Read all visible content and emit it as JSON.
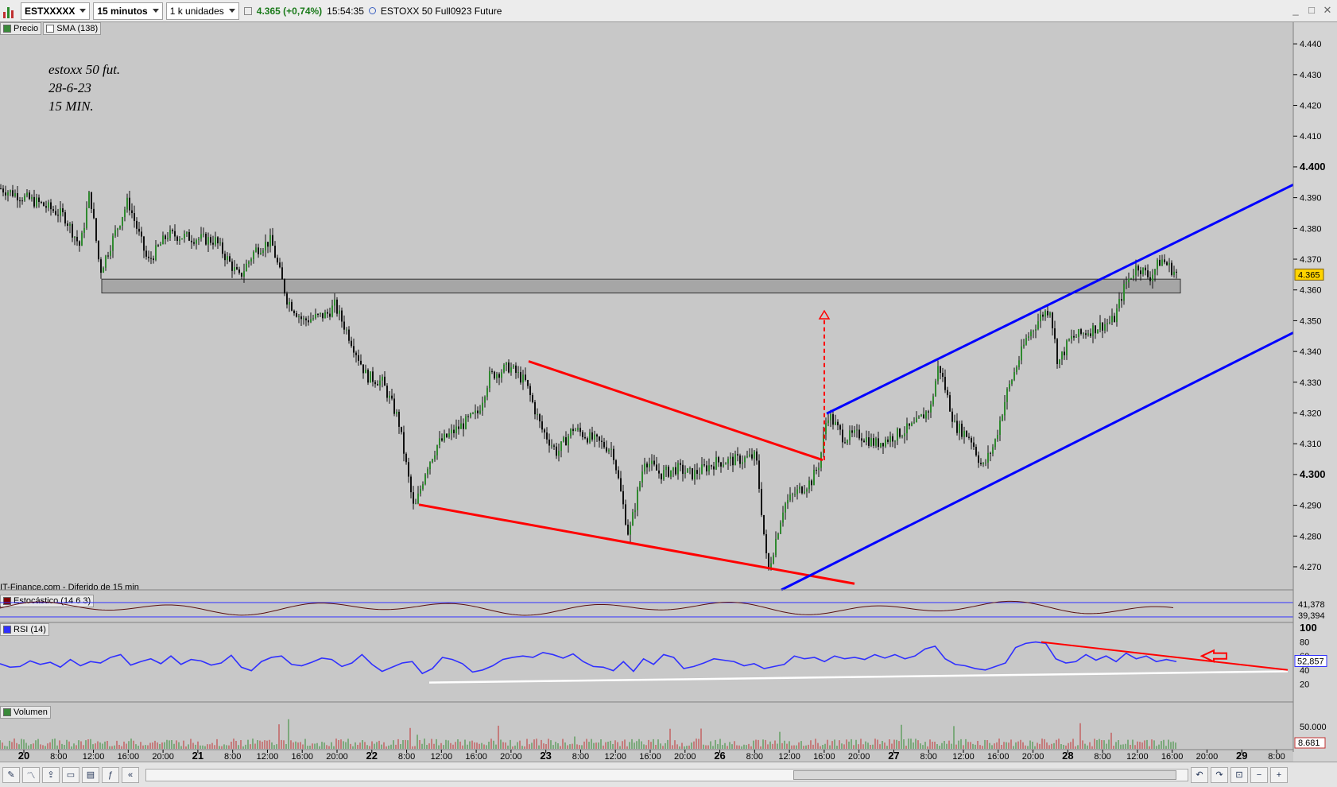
{
  "toolbar": {
    "symbol": "ESTXXXXX",
    "interval": "15 minutos",
    "units": "1 k unidades",
    "quote_price": "4.365 (+0,74%)",
    "quote_time": "15:54:35",
    "quote_name": "ESTOXX 50 Full0923 Future"
  },
  "legend": {
    "price_label": "Precio",
    "sma_label": "SMA (138)"
  },
  "annotation": {
    "line1": "estoxx 50 fut.",
    "line2": "28-6-23",
    "line3": "15 MIN."
  },
  "source_label": "IT-Finance.com - Diferido de 15 min",
  "colors": {
    "background": "#c8c8c8",
    "support": "#ff0000",
    "channel": "#0000ff",
    "rsi": "#3030ff",
    "candle": "#000000"
  },
  "chart_data": [
    {
      "type": "line",
      "title": "",
      "panel": "price",
      "x_ticks": [
        "20",
        "8:00",
        "12:00",
        "16:00",
        "20:00",
        "21",
        "8:00",
        "12:00",
        "16:00",
        "20:00",
        "22",
        "8:00",
        "12:00",
        "16:00",
        "20:00",
        "23",
        "8:00",
        "12:00",
        "16:00",
        "20:00",
        "26",
        "8:00",
        "12:00",
        "16:00",
        "20:00",
        "27",
        "8:00",
        "12:00",
        "16:00",
        "20:00",
        "28",
        "8:00",
        "12:00",
        "16:00",
        "20:00",
        "29",
        "8:00"
      ],
      "y_ticks": [
        "4.440",
        "4.430",
        "4.420",
        "4.410",
        "4.400",
        "4.390",
        "4.380",
        "4.370",
        "4.360",
        "4.350",
        "4.340",
        "4.330",
        "4.320",
        "4.310",
        "4.300",
        "4.290",
        "4.280",
        "4.270"
      ],
      "ylim": [
        4.2625,
        4.4465
      ],
      "last_price": "4.365",
      "path_points": [
        [
          0,
          4.393
        ],
        [
          50,
          4.388
        ],
        [
          80,
          4.384
        ],
        [
          100,
          4.374
        ],
        [
          112,
          4.392
        ],
        [
          125,
          4.366
        ],
        [
          140,
          4.376
        ],
        [
          160,
          4.389
        ],
        [
          185,
          4.369
        ],
        [
          210,
          4.378
        ],
        [
          240,
          4.377
        ],
        [
          270,
          4.376
        ],
        [
          300,
          4.364
        ],
        [
          320,
          4.373
        ],
        [
          340,
          4.376
        ],
        [
          360,
          4.357
        ],
        [
          380,
          4.35
        ],
        [
          410,
          4.352
        ],
        [
          420,
          4.355
        ],
        [
          440,
          4.344
        ],
        [
          460,
          4.332
        ],
        [
          480,
          4.33
        ],
        [
          500,
          4.318
        ],
        [
          520,
          4.288
        ],
        [
          535,
          4.302
        ],
        [
          550,
          4.31
        ],
        [
          575,
          4.315
        ],
        [
          600,
          4.32
        ],
        [
          615,
          4.332
        ],
        [
          640,
          4.335
        ],
        [
          660,
          4.33
        ],
        [
          680,
          4.315
        ],
        [
          700,
          4.307
        ],
        [
          720,
          4.315
        ],
        [
          740,
          4.312
        ],
        [
          770,
          4.308
        ],
        [
          790,
          4.28
        ],
        [
          810,
          4.305
        ],
        [
          830,
          4.3
        ],
        [
          850,
          4.302
        ],
        [
          870,
          4.3
        ],
        [
          900,
          4.304
        ],
        [
          935,
          4.305
        ],
        [
          950,
          4.306
        ],
        [
          965,
          4.268
        ],
        [
          985,
          4.29
        ],
        [
          1000,
          4.294
        ],
        [
          1020,
          4.298
        ],
        [
          1030,
          4.304
        ],
        [
          1040,
          4.32
        ],
        [
          1060,
          4.312
        ],
        [
          1080,
          4.313
        ],
        [
          1100,
          4.31
        ],
        [
          1120,
          4.312
        ],
        [
          1150,
          4.316
        ],
        [
          1170,
          4.322
        ],
        [
          1180,
          4.336
        ],
        [
          1200,
          4.316
        ],
        [
          1220,
          4.312
        ],
        [
          1235,
          4.302
        ],
        [
          1250,
          4.31
        ],
        [
          1265,
          4.326
        ],
        [
          1290,
          4.344
        ],
        [
          1310,
          4.352
        ],
        [
          1320,
          4.354
        ],
        [
          1330,
          4.336
        ],
        [
          1345,
          4.344
        ],
        [
          1380,
          4.348
        ],
        [
          1400,
          4.35
        ],
        [
          1415,
          4.362
        ],
        [
          1430,
          4.368
        ],
        [
          1445,
          4.364
        ],
        [
          1460,
          4.37
        ],
        [
          1480,
          4.365
        ]
      ],
      "support_zone": [
        4.359,
        4.3635
      ],
      "lines": [
        {
          "name": "falling-wedge-top",
          "from": [
            665,
            4.3368
          ],
          "to": [
            1035,
            4.3047
          ],
          "color": "#ff0000"
        },
        {
          "name": "falling-wedge-bottom",
          "from": [
            527,
            4.2902
          ],
          "to": [
            1075,
            4.2645
          ],
          "color": "#ff0000"
        },
        {
          "name": "channel-top",
          "from": [
            1040,
            4.3198
          ],
          "to": [
            1630,
            4.3946
          ],
          "color": "#0000ff"
        },
        {
          "name": "channel-bottom",
          "from": [
            983,
            4.2625
          ],
          "to": [
            1630,
            4.3465
          ],
          "color": "#0000ff"
        }
      ],
      "target_arrow": {
        "x": 1037,
        "from": 4.3047,
        "to": 4.3532
      }
    },
    {
      "type": "line",
      "panel": "stochastic",
      "label": "Estocástico (14 6 3)",
      "values_right": [
        "41,378",
        "39,394"
      ]
    },
    {
      "type": "line",
      "panel": "rsi",
      "label": "RSI (14)",
      "y_ticks": [
        "100",
        "80",
        "60",
        "40",
        "20"
      ],
      "ylim": [
        0,
        100
      ],
      "last_value": "52,857",
      "values": [
        49,
        44,
        45,
        53,
        48,
        51,
        44,
        55,
        46,
        52,
        50,
        58,
        62,
        47,
        52,
        56,
        49,
        60,
        48,
        55,
        53,
        47,
        50,
        61,
        44,
        39,
        52,
        58,
        60,
        48,
        46,
        51,
        57,
        55,
        45,
        50,
        62,
        48,
        38,
        44,
        50,
        52,
        35,
        42,
        58,
        55,
        49,
        37,
        40,
        46,
        55,
        58,
        60,
        58,
        65,
        62,
        57,
        63,
        52,
        45,
        44,
        39,
        52,
        38,
        56,
        48,
        62,
        58,
        42,
        45,
        50,
        56,
        54,
        52,
        46,
        49,
        42,
        45,
        48,
        60,
        56,
        58,
        52,
        60,
        56,
        58,
        55,
        62,
        57,
        62,
        56,
        60,
        70,
        74,
        56,
        48,
        46,
        42,
        40,
        45,
        50,
        72,
        78,
        80,
        78,
        56,
        50,
        52,
        62,
        54,
        60,
        52,
        64,
        56,
        60,
        52,
        55,
        52
      ]
    },
    {
      "type": "bar",
      "panel": "volume",
      "label": "Volumen",
      "y_ticks": [
        "50.000"
      ],
      "last_value": "8.681"
    }
  ]
}
